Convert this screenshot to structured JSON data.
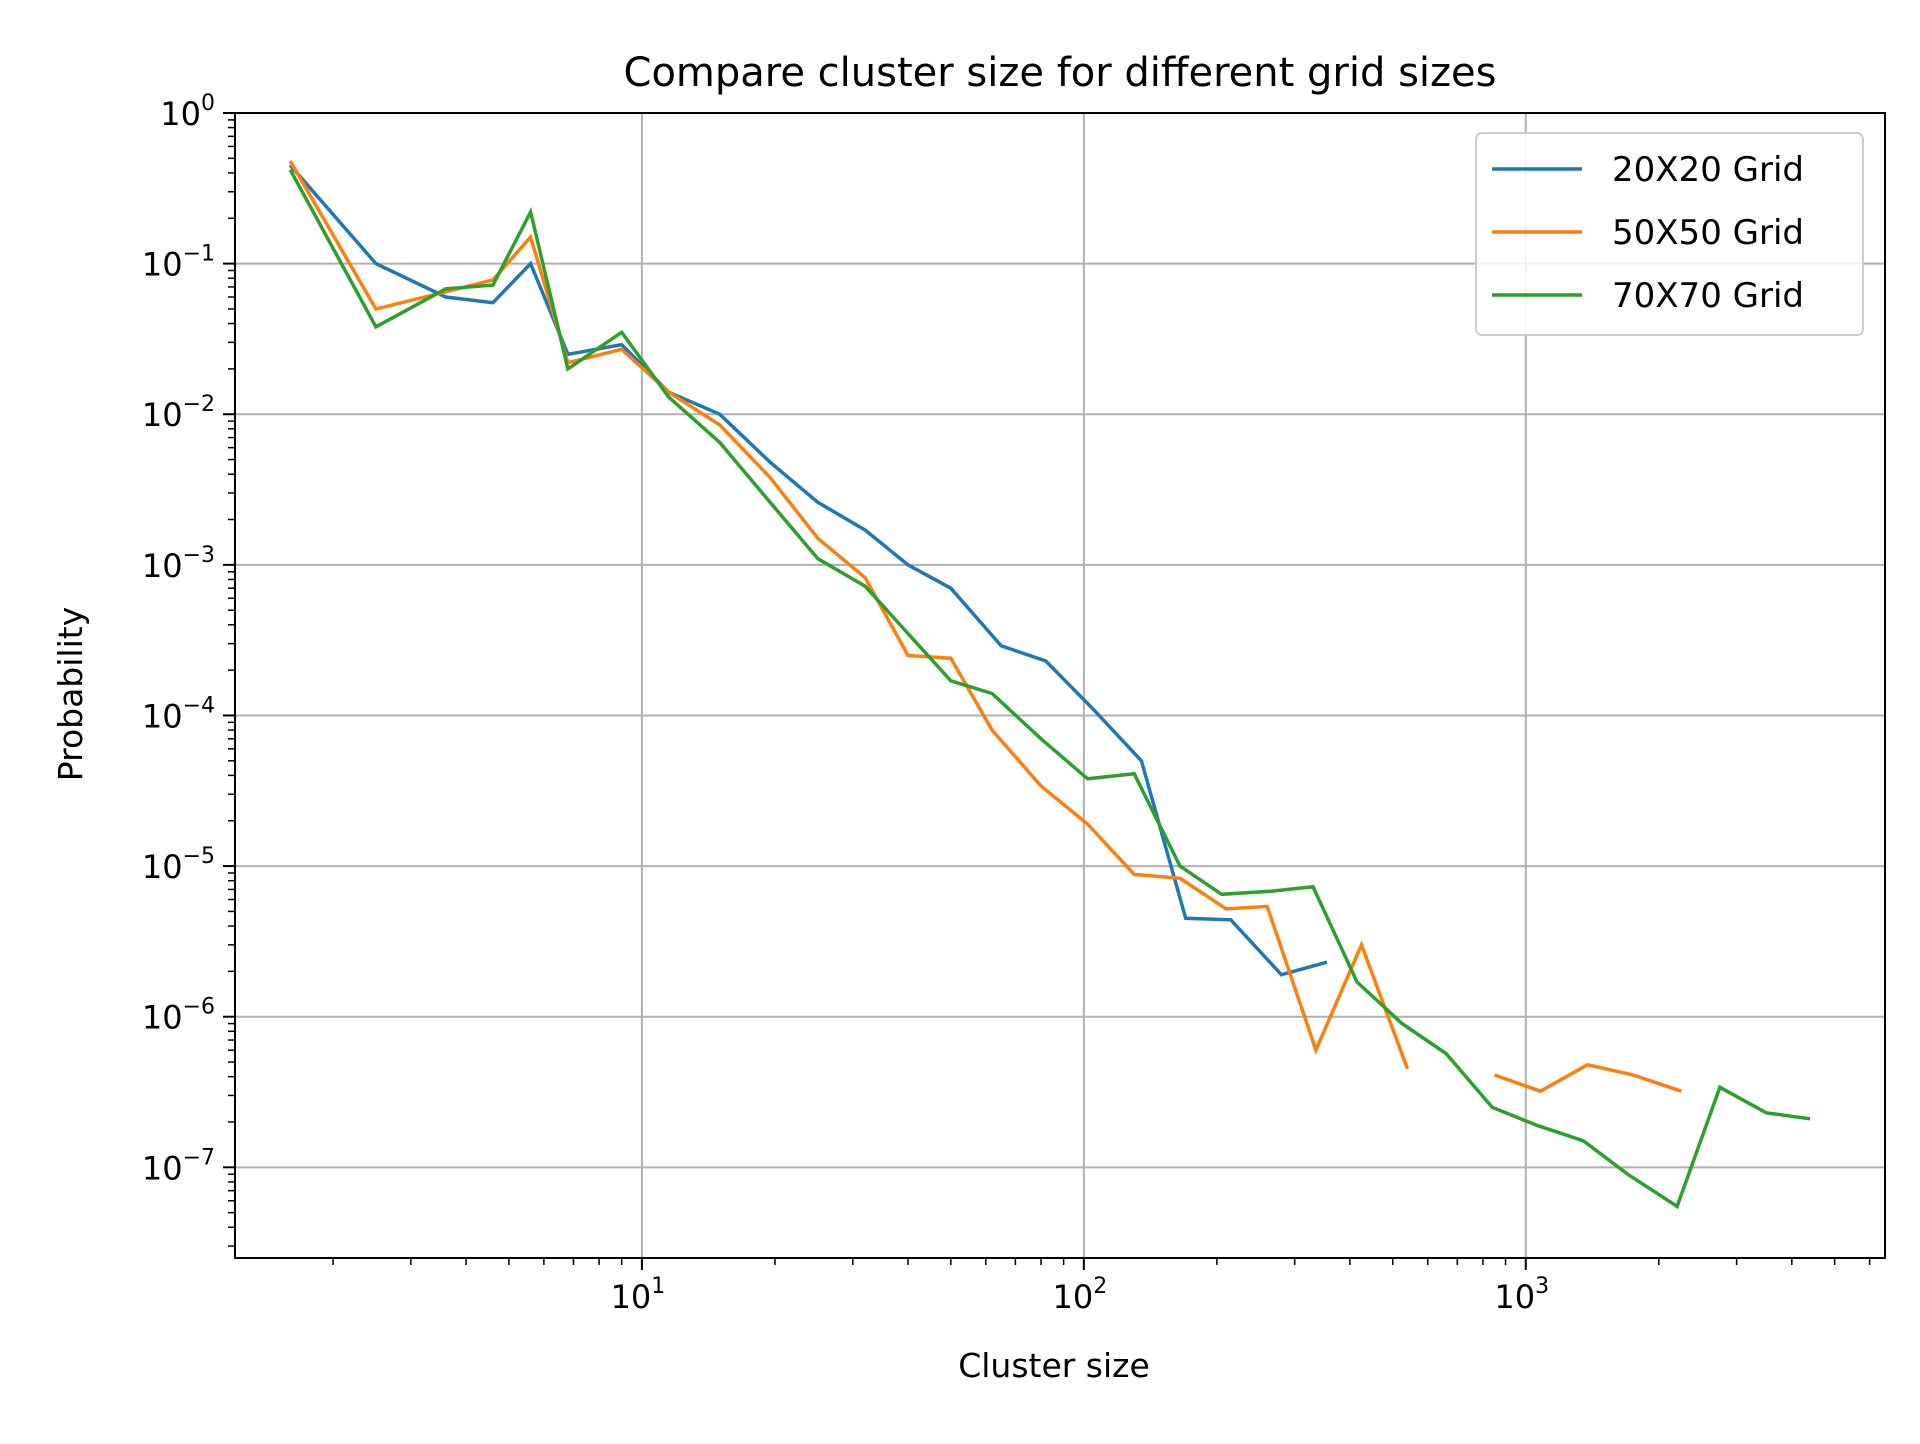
{
  "chart_data": {
    "type": "line",
    "title": "Compare cluster size for different grid sizes",
    "xlabel": "Cluster size",
    "ylabel": "Probability",
    "xscale": "log",
    "yscale": "log",
    "xlim": [
      1.2,
      6500
    ],
    "ylim": [
      2.5e-08,
      1
    ],
    "grid": true,
    "legend_position": "top-right",
    "x_ticks": [
      {
        "base": "10",
        "exp": "1",
        "value": 10
      },
      {
        "base": "10",
        "exp": "2",
        "value": 100
      },
      {
        "base": "10",
        "exp": "3",
        "value": 1000
      }
    ],
    "y_ticks": [
      {
        "base": "10",
        "exp": "0",
        "value": 1
      },
      {
        "base": "10",
        "exp": "−1",
        "value": 0.1
      },
      {
        "base": "10",
        "exp": "−2",
        "value": 0.01
      },
      {
        "base": "10",
        "exp": "−3",
        "value": 0.001
      },
      {
        "base": "10",
        "exp": "−4",
        "value": 0.0001
      },
      {
        "base": "10",
        "exp": "−5",
        "value": 1e-05
      },
      {
        "base": "10",
        "exp": "−6",
        "value": 1e-06
      },
      {
        "base": "10",
        "exp": "−7",
        "value": 1e-07
      }
    ],
    "series": [
      {
        "name": "20X20 Grid",
        "color": "#1f77b4",
        "points": [
          [
            1.6,
            0.45
          ],
          [
            2.5,
            0.1
          ],
          [
            3.6,
            0.06
          ],
          [
            4.6,
            0.055
          ],
          [
            5.6,
            0.1
          ],
          [
            6.8,
            0.025
          ],
          [
            9,
            0.029
          ],
          [
            11.5,
            0.014
          ],
          [
            15,
            0.01
          ],
          [
            19.5,
            0.0048
          ],
          [
            25,
            0.0026
          ],
          [
            32,
            0.0017
          ],
          [
            40,
            0.001
          ],
          [
            50,
            0.0007
          ],
          [
            65,
            0.00029
          ],
          [
            82,
            0.00023
          ],
          [
            105,
            0.00011
          ],
          [
            135,
            5e-05
          ],
          [
            170,
            4.5e-06
          ],
          [
            215,
            4.4e-06
          ],
          [
            280,
            1.9e-06
          ],
          [
            355,
            2.3e-06
          ]
        ]
      },
      {
        "name": "50X50 Grid",
        "color": "#ff7f0e",
        "points": [
          [
            1.6,
            0.48
          ],
          [
            2.5,
            0.05
          ],
          [
            3.6,
            0.065
          ],
          [
            4.6,
            0.078
          ],
          [
            5.6,
            0.15
          ],
          [
            6.8,
            0.022
          ],
          [
            9,
            0.027
          ],
          [
            11.5,
            0.014
          ],
          [
            15,
            0.0085
          ],
          [
            19.5,
            0.0038
          ],
          [
            25,
            0.0015
          ],
          [
            32,
            0.00082
          ],
          [
            40,
            0.00025
          ],
          [
            50,
            0.00024
          ],
          [
            62,
            8e-05
          ],
          [
            80,
            3.4e-05
          ],
          [
            102,
            1.9e-05
          ],
          [
            130,
            8.8e-06
          ],
          [
            165,
            8.3e-06
          ],
          [
            210,
            5.2e-06
          ],
          [
            260,
            5.4e-06
          ],
          [
            335,
            6e-07
          ],
          [
            425,
            3e-06
          ],
          [
            540,
            4.5e-07
          ],
          [
            null,
            null
          ],
          [
            850,
            4.1e-07
          ],
          [
            1080,
            3.2e-07
          ],
          [
            1380,
            4.8e-07
          ],
          [
            1750,
            4.1e-07
          ],
          [
            2250,
            3.2e-07
          ]
        ]
      },
      {
        "name": "70X70 Grid",
        "color": "#2ca02c",
        "points": [
          [
            1.6,
            0.42
          ],
          [
            2.5,
            0.038
          ],
          [
            3.6,
            0.068
          ],
          [
            4.6,
            0.072
          ],
          [
            5.6,
            0.22
          ],
          [
            6.8,
            0.02
          ],
          [
            9,
            0.035
          ],
          [
            11.5,
            0.013
          ],
          [
            15,
            0.0065
          ],
          [
            19.5,
            0.0026
          ],
          [
            25,
            0.0011
          ],
          [
            32,
            0.00072
          ],
          [
            40,
            0.00035
          ],
          [
            50,
            0.00017
          ],
          [
            62,
            0.00014
          ],
          [
            80,
            7e-05
          ],
          [
            102,
            3.8e-05
          ],
          [
            130,
            4.1e-05
          ],
          [
            165,
            1e-05
          ],
          [
            205,
            6.5e-06
          ],
          [
            265,
            6.8e-06
          ],
          [
            330,
            7.3e-06
          ],
          [
            415,
            1.7e-06
          ],
          [
            525,
            9e-07
          ],
          [
            660,
            5.7e-07
          ],
          [
            840,
            2.5e-07
          ],
          [
            1060,
            1.9e-07
          ],
          [
            1350,
            1.5e-07
          ],
          [
            1700,
            9e-08
          ],
          [
            2200,
            5.5e-08
          ],
          [
            2750,
            3.4e-07
          ],
          [
            3500,
            2.3e-07
          ],
          [
            4400,
            2.1e-07
          ]
        ]
      }
    ]
  }
}
